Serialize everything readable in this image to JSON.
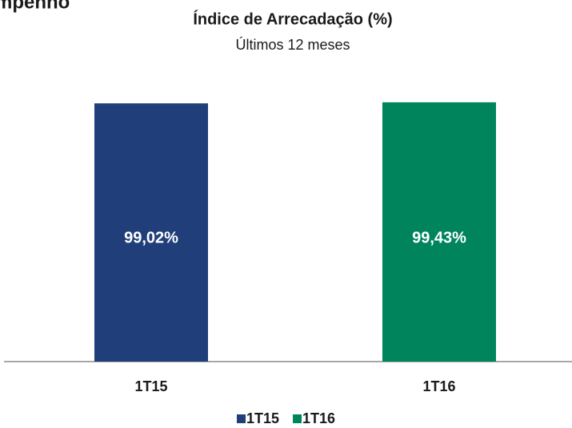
{
  "page": {
    "heading": "mpenho"
  },
  "chart_data": {
    "type": "bar",
    "title": "Índice de Arrecadação (%)",
    "subtitle": "Últimos 12 meses",
    "categories": [
      "1T15",
      "1T16"
    ],
    "values": [
      99.02,
      99.43
    ],
    "value_labels": [
      "99,02%",
      "99,43%"
    ],
    "colors": [
      "#203f7a",
      "#00845c"
    ],
    "ylim": [
      0,
      100
    ],
    "legend": "bottom"
  }
}
